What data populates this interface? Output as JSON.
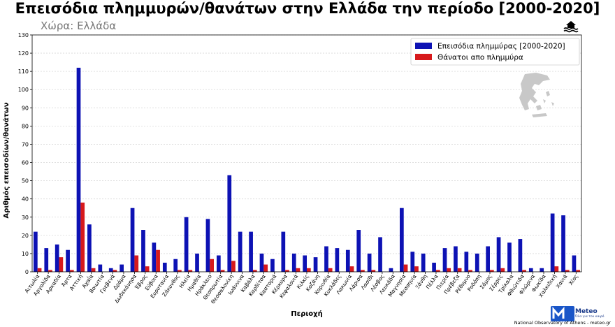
{
  "title": "Επεισόδια πλημμυρών/θανάτων στην Ελλάδα την περίοδο [2000-2020]",
  "subtitle": "Χώρα: Ελλάδα",
  "footer": "National Observatory of Athens - meteo.gr",
  "logo": {
    "name": "Meteo",
    "tagline": "Όλα για τον καιρό"
  },
  "icons": [
    "flood-icon",
    "greece-map",
    "meteo-logo"
  ],
  "colors": {
    "floods": "#0d12b4",
    "deaths": "#d7191c"
  },
  "chart_data": {
    "type": "bar",
    "xlabel": "Περιοχή",
    "ylabel": "Αριθμός επεισοδίων/θανάτων",
    "ylim": [
      0,
      130
    ],
    "yticks": [
      0,
      10,
      20,
      30,
      40,
      50,
      60,
      70,
      80,
      90,
      100,
      110,
      120,
      130
    ],
    "grid": true,
    "legend_position": "top-right",
    "categories": [
      "Αιτωλία",
      "Αργολίδα",
      "Αρκαδία",
      "Άρτα",
      "Αττική",
      "Αχαΐα",
      "Βοιωτία",
      "Γρεβενά",
      "Δράμα",
      "Δωδεκάνησα",
      "Έβρος",
      "Εύβοια",
      "Ευρυτανία",
      "Ζάκυνθος",
      "Ηλεία",
      "Ημαθία",
      "Ηράκλειο",
      "Θεσπρωτία",
      "Θεσσαλονίκη",
      "Ιωάννινα",
      "Καβάλα",
      "Καρδίτσα",
      "Καστοριά",
      "Κέρκυρα",
      "Κεφαλονιά",
      "Κιλκίς",
      "Κοζάνη",
      "Κορινθία",
      "Κυκλάδες",
      "Λακωνία",
      "Λάρισα",
      "Λασίθι",
      "Λέσβος",
      "Λευκάδα",
      "Μαγνησία",
      "Μεσσηνία",
      "Ξάνθη",
      "Πέλλα",
      "Πιερία",
      "Πρέβεζα",
      "Ρέθυμνο",
      "Ροδόπη",
      "Σάμος",
      "Σέρρες",
      "Τρίκαλα",
      "Φθιώτιδα",
      "Φλώρινα",
      "Φωκίδα",
      "Χαλκιδική",
      "Χανιά",
      "Χίος"
    ],
    "series": [
      {
        "name": "Επεισόδια πλημμύρας [2000-2020]",
        "values": [
          22,
          13,
          15,
          12,
          112,
          26,
          4,
          2,
          4,
          35,
          23,
          16,
          5,
          7,
          30,
          10,
          29,
          9,
          53,
          22,
          22,
          10,
          7,
          22,
          10,
          9,
          8,
          14,
          13,
          12,
          23,
          10,
          19,
          2,
          35,
          11,
          10,
          5,
          13,
          14,
          11,
          10,
          14,
          19,
          16,
          18,
          2,
          2,
          32,
          31,
          9
        ]
      },
      {
        "name": "Θάνατοι απο πλημμύρα",
        "values": [
          2,
          1,
          8,
          1,
          38,
          2,
          0,
          1,
          0,
          9,
          3,
          12,
          0,
          1,
          1,
          0,
          7,
          1,
          6,
          0,
          1,
          4,
          0,
          1,
          2,
          2,
          0,
          2,
          0,
          3,
          1,
          1,
          0,
          0,
          4,
          3,
          0,
          1,
          2,
          2,
          1,
          0,
          1,
          2,
          0,
          1,
          0,
          0,
          3,
          1,
          1
        ]
      }
    ]
  }
}
